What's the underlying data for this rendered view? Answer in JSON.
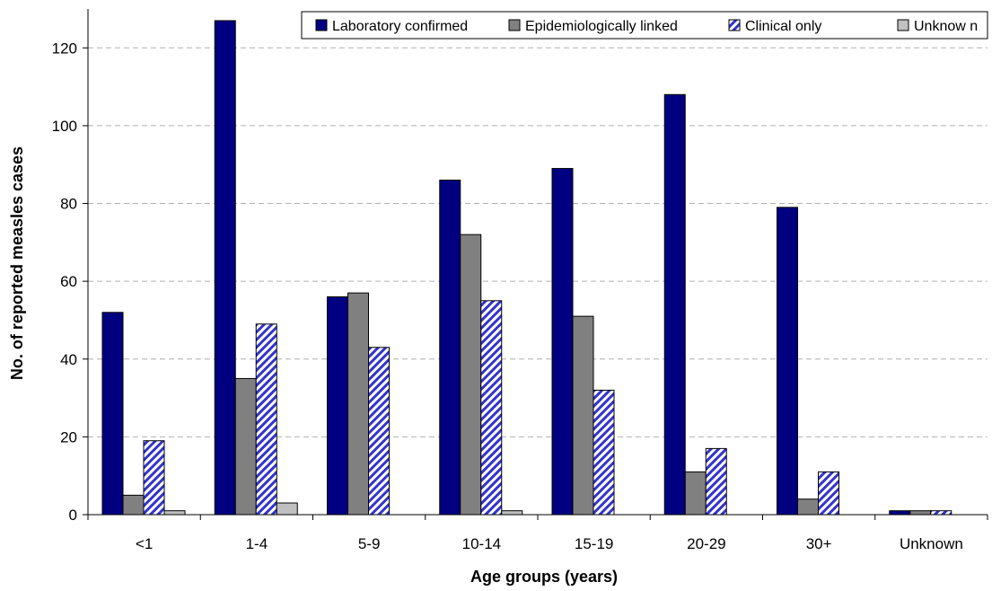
{
  "chart_data": {
    "type": "bar",
    "title": "",
    "xlabel": "Age groups (years)",
    "ylabel": "No. of reported measles cases",
    "ylim": [
      0,
      130
    ],
    "yticks": [
      0,
      20,
      40,
      60,
      80,
      100,
      120
    ],
    "grid": "horizontal dashed",
    "legend_position": "top",
    "categories": [
      "<1",
      "1-4",
      "5-9",
      "10-14",
      "15-19",
      "20-29",
      "30+",
      "Unknown"
    ],
    "series": [
      {
        "name": "Laboratory confirmed",
        "color": "#000080",
        "fill": "solid",
        "values": [
          52,
          127,
          56,
          86,
          89,
          108,
          79,
          1
        ]
      },
      {
        "name": "Epidemiologically linked",
        "color": "#808080",
        "fill": "solid",
        "values": [
          5,
          35,
          57,
          72,
          51,
          11,
          4,
          1
        ]
      },
      {
        "name": "Clinical only",
        "color": "#3333cc",
        "fill": "diagonal-hatch",
        "values": [
          19,
          49,
          43,
          55,
          32,
          17,
          11,
          1
        ]
      },
      {
        "name": "Unknow n",
        "color": "#c0c0c0",
        "fill": "solid",
        "values": [
          1,
          3,
          0,
          1,
          0,
          0,
          0,
          0
        ]
      }
    ]
  }
}
